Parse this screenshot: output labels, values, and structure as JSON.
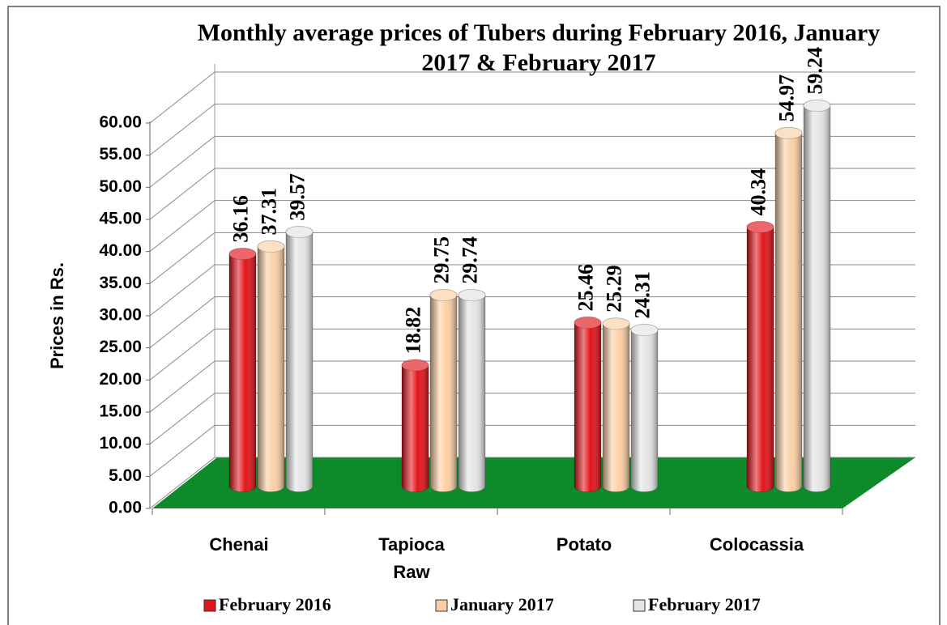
{
  "chart_data": {
    "type": "bar",
    "title": "Monthly average prices of Tubers during February 2016, January 2017 & February 2017",
    "y_label": "Prices in Rs.",
    "categories": [
      "Chenai",
      "Tapioca Raw",
      "Potato",
      "Colocassia"
    ],
    "series": [
      {
        "name": "February 2016",
        "color": "#e3141b",
        "values": [
          36.16,
          18.82,
          25.46,
          40.34
        ]
      },
      {
        "name": "January 2017",
        "color": "#fbcfa5",
        "values": [
          37.31,
          29.75,
          25.29,
          54.97
        ]
      },
      {
        "name": "February 2017",
        "color": "#e4e4e4",
        "values": [
          39.57,
          29.74,
          24.31,
          59.24
        ]
      }
    ],
    "ylim": [
      0,
      60
    ],
    "yticks": [
      {
        "value": 0,
        "label": "0.00"
      },
      {
        "value": 5,
        "label": "5.00"
      },
      {
        "value": 10,
        "label": "10.00"
      },
      {
        "value": 15,
        "label": "15.00"
      },
      {
        "value": 20,
        "label": "20.00"
      },
      {
        "value": 25,
        "label": "25.00"
      },
      {
        "value": 30,
        "label": "30.00"
      },
      {
        "value": 35,
        "label": "35.00"
      },
      {
        "value": 40,
        "label": "40.00"
      },
      {
        "value": 45,
        "label": "45.00"
      },
      {
        "value": 50,
        "label": "50.00"
      },
      {
        "value": 55,
        "label": "55.00"
      },
      {
        "value": 60,
        "label": "60.00"
      }
    ],
    "grid": true,
    "legend": "bottom",
    "floor_color": "#0e8a2a"
  }
}
